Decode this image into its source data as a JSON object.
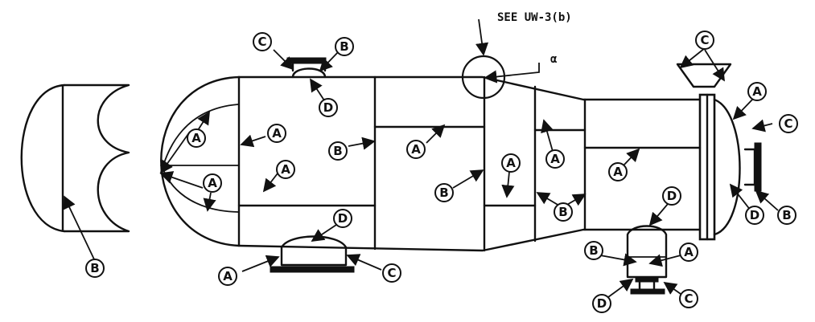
{
  "notes": {
    "see_ref": "SEE UW-3(b)",
    "alpha": "α"
  },
  "labels": {
    "A": "A",
    "B": "B",
    "C": "C",
    "D": "D"
  }
}
